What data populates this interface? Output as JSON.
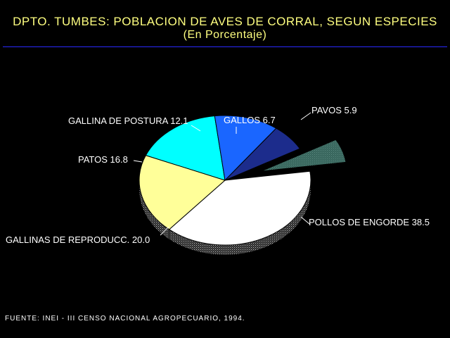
{
  "header": {
    "title": "DPTO. TUMBES: POBLACION DE AVES DE CORRAL, SEGUN ESPECIES",
    "subtitle": "(En Porcentaje)"
  },
  "chart_data": {
    "type": "pie",
    "title": "DPTO. TUMBES: POBLACION DE AVES DE CORRAL, SEGUN ESPECIES",
    "subtitle": "(En Porcentaje)",
    "labels": [
      "POLLOS DE ENGORDE",
      "GALLINAS DE REPRODUCC.",
      "PATOS",
      "GALLINA DE POSTURA",
      "GALLOS",
      "PAVOS"
    ],
    "values": [
      38.5,
      20.0,
      16.8,
      12.1,
      6.7,
      5.9
    ],
    "value_labels": [
      "38.5",
      "20.0",
      "16.8",
      "12.1",
      "6.7",
      "5.9"
    ],
    "colors": [
      "#ffffff",
      "#ffff99",
      "#00ffff",
      "#1a66ff",
      "#1c2c8c",
      "#3c7a6e"
    ],
    "exploded": "PAVOS",
    "style": "3d"
  },
  "footer": {
    "source": "FUENTE: INEI - III CENSO NACIONAL AGROPECUARIO, 1994."
  }
}
